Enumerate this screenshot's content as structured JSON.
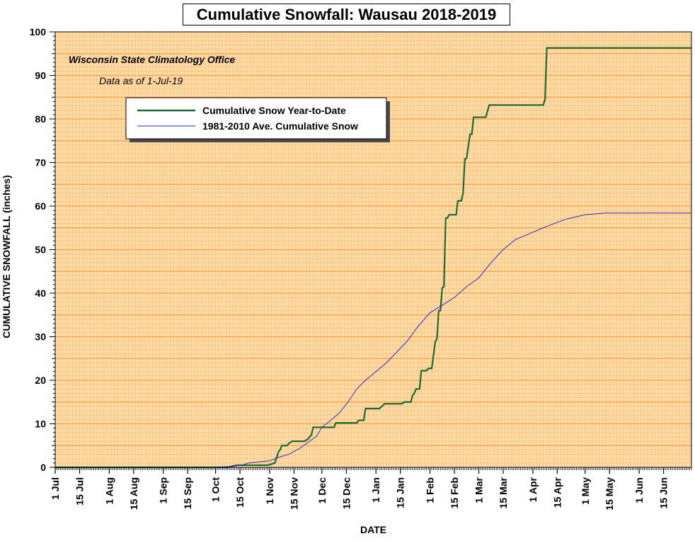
{
  "chart_data": {
    "type": "line",
    "title": "Cumulative Snowfall: Wausau 2018-2019",
    "annotations": [
      "Wisconsin State Climatology Office",
      "Data as of 1-Jul-19"
    ],
    "xlabel": "DATE",
    "ylabel": "CUMULATIVE SNOWFALL (inches)",
    "ylim": [
      0,
      100
    ],
    "yticks": [
      0,
      10,
      20,
      30,
      40,
      50,
      60,
      70,
      80,
      90,
      100
    ],
    "xlim": [
      "2018-07-01",
      "2019-07-01"
    ],
    "xticks": [
      {
        "date": "2018-07-01",
        "label": "1 Jul"
      },
      {
        "date": "2018-07-15",
        "label": "15 Jul"
      },
      {
        "date": "2018-08-01",
        "label": "1 Aug"
      },
      {
        "date": "2018-08-15",
        "label": "15 Aug"
      },
      {
        "date": "2018-09-01",
        "label": "1 Sep"
      },
      {
        "date": "2018-09-15",
        "label": "15 Sep"
      },
      {
        "date": "2018-10-01",
        "label": "1 Oct"
      },
      {
        "date": "2018-10-15",
        "label": "15 Oct"
      },
      {
        "date": "2018-11-01",
        "label": "1 Nov"
      },
      {
        "date": "2018-11-15",
        "label": "15 Nov"
      },
      {
        "date": "2018-12-01",
        "label": "1 Dec"
      },
      {
        "date": "2018-12-15",
        "label": "15 Dec"
      },
      {
        "date": "2019-01-01",
        "label": "1 Jan"
      },
      {
        "date": "2019-01-15",
        "label": "15 Jan"
      },
      {
        "date": "2019-02-01",
        "label": "1 Feb"
      },
      {
        "date": "2019-02-15",
        "label": "15 Feb"
      },
      {
        "date": "2019-03-01",
        "label": "1 Mar"
      },
      {
        "date": "2019-03-15",
        "label": "15 Mar"
      },
      {
        "date": "2019-04-01",
        "label": "1 Apr"
      },
      {
        "date": "2019-04-15",
        "label": "15 Apr"
      },
      {
        "date": "2019-05-01",
        "label": "1 May"
      },
      {
        "date": "2019-05-15",
        "label": "15 May"
      },
      {
        "date": "2019-06-01",
        "label": "1 Jun"
      },
      {
        "date": "2019-06-15",
        "label": "15 Jun"
      }
    ],
    "grid": true,
    "legend_position": "upper-left",
    "colors": {
      "plot_background": "#ffdcaa",
      "major_grid": "#f6a040",
      "minor_grid": "#fbc47c",
      "series_ytd": "#1a6a33",
      "series_avg": "#2a2ad0"
    },
    "series": [
      {
        "name": "Cumulative Snow Year-to-Date",
        "color": "#1a6a33",
        "style": "step",
        "points": [
          [
            "2018-07-01",
            0
          ],
          [
            "2018-10-08",
            0
          ],
          [
            "2018-10-13",
            0.5
          ],
          [
            "2018-10-31",
            0.5
          ],
          [
            "2018-11-04",
            1
          ],
          [
            "2018-11-06",
            3.5
          ],
          [
            "2018-11-07",
            4
          ],
          [
            "2018-11-08",
            5
          ],
          [
            "2018-11-11",
            5
          ],
          [
            "2018-11-12",
            5.5
          ],
          [
            "2018-11-14",
            6
          ],
          [
            "2018-11-21",
            6
          ],
          [
            "2018-11-23",
            6.5
          ],
          [
            "2018-11-24",
            7
          ],
          [
            "2018-11-25",
            7.5
          ],
          [
            "2018-11-26",
            9.2
          ],
          [
            "2018-12-08",
            9.2
          ],
          [
            "2018-12-09",
            10.2
          ],
          [
            "2018-12-21",
            10.2
          ],
          [
            "2018-12-22",
            10.8
          ],
          [
            "2018-12-25",
            10.8
          ],
          [
            "2018-12-26",
            13.5
          ],
          [
            "2019-01-03",
            13.5
          ],
          [
            "2019-01-06",
            14.6
          ],
          [
            "2019-01-16",
            14.6
          ],
          [
            "2019-01-17",
            15
          ],
          [
            "2019-01-21",
            15
          ],
          [
            "2019-01-22",
            16.5
          ],
          [
            "2019-01-23",
            17
          ],
          [
            "2019-01-24",
            18
          ],
          [
            "2019-01-26",
            18
          ],
          [
            "2019-01-27",
            22.2
          ],
          [
            "2019-01-30",
            22.2
          ],
          [
            "2019-01-31",
            22.7
          ],
          [
            "2019-02-02",
            22.7
          ],
          [
            "2019-02-04",
            28.8
          ],
          [
            "2019-02-05",
            29.5
          ],
          [
            "2019-02-06",
            36
          ],
          [
            "2019-02-07",
            36
          ],
          [
            "2019-02-08",
            41.2
          ],
          [
            "2019-02-09",
            41.5
          ],
          [
            "2019-02-10",
            57.2
          ],
          [
            "2019-02-11",
            57.3
          ],
          [
            "2019-02-12",
            58
          ],
          [
            "2019-02-16",
            58
          ],
          [
            "2019-02-17",
            61.2
          ],
          [
            "2019-02-19",
            61.2
          ],
          [
            "2019-02-20",
            63
          ],
          [
            "2019-02-21",
            70.8
          ],
          [
            "2019-02-22",
            71
          ],
          [
            "2019-02-24",
            76.5
          ],
          [
            "2019-02-25",
            76.5
          ],
          [
            "2019-02-26",
            80.4
          ],
          [
            "2019-03-05",
            80.4
          ],
          [
            "2019-03-07",
            83.2
          ],
          [
            "2019-04-07",
            83.2
          ],
          [
            "2019-04-08",
            84.5
          ],
          [
            "2019-04-09",
            96.3
          ],
          [
            "2019-07-01",
            96.3
          ]
        ]
      },
      {
        "name": "1981-2010 Ave. Cumulative Snow",
        "color": "#2a2ad0",
        "style": "line",
        "points": [
          [
            "2018-07-01",
            0
          ],
          [
            "2018-10-01",
            0
          ],
          [
            "2018-10-10",
            0.2
          ],
          [
            "2018-10-16",
            0.5
          ],
          [
            "2018-10-20",
            1.0
          ],
          [
            "2018-10-27",
            1.3
          ],
          [
            "2018-11-01",
            1.5
          ],
          [
            "2018-11-06",
            2.3
          ],
          [
            "2018-11-12",
            3.0
          ],
          [
            "2018-11-18",
            4.3
          ],
          [
            "2018-11-24",
            6.0
          ],
          [
            "2018-11-28",
            7.2
          ],
          [
            "2018-12-01",
            9.2
          ],
          [
            "2018-12-06",
            10.8
          ],
          [
            "2018-12-11",
            12.5
          ],
          [
            "2018-12-16",
            15.0
          ],
          [
            "2018-12-21",
            18.0
          ],
          [
            "2018-12-26",
            20.0
          ],
          [
            "2019-01-01",
            22.0
          ],
          [
            "2019-01-07",
            24.0
          ],
          [
            "2019-01-13",
            26.5
          ],
          [
            "2019-01-19",
            29.0
          ],
          [
            "2019-01-25",
            32.3
          ],
          [
            "2019-02-01",
            35.5
          ],
          [
            "2019-02-08",
            37.2
          ],
          [
            "2019-02-15",
            39.0
          ],
          [
            "2019-02-22",
            41.5
          ],
          [
            "2019-03-01",
            43.5
          ],
          [
            "2019-03-08",
            47.0
          ],
          [
            "2019-03-15",
            50.0
          ],
          [
            "2019-03-22",
            52.3
          ],
          [
            "2019-04-01",
            54.0
          ],
          [
            "2019-04-10",
            55.5
          ],
          [
            "2019-04-20",
            57.0
          ],
          [
            "2019-05-01",
            58.0
          ],
          [
            "2019-05-12",
            58.4
          ],
          [
            "2019-07-01",
            58.4
          ]
        ]
      }
    ]
  }
}
